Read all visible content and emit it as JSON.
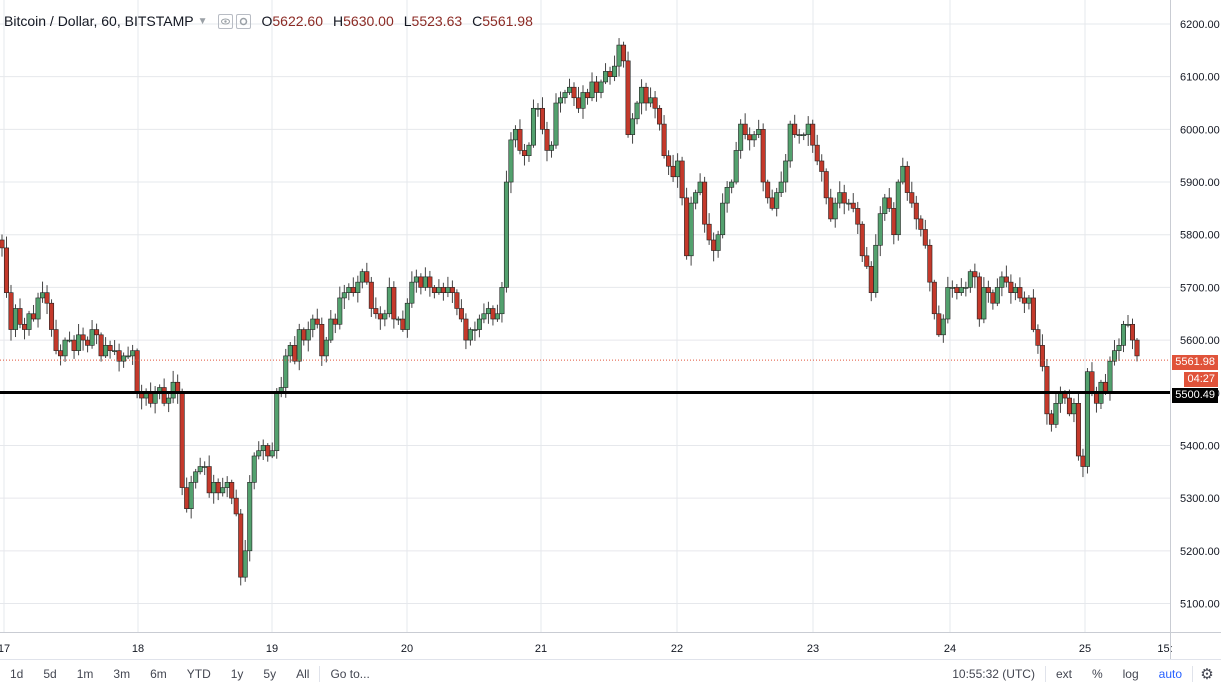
{
  "header": {
    "title": "Bitcoin / Dollar, 60, BITSTAMP",
    "ohlc": [
      {
        "label": "O",
        "value": "5622.60"
      },
      {
        "label": "H",
        "value": "5630.00"
      },
      {
        "label": "L",
        "value": "5523.63"
      },
      {
        "label": "C",
        "value": "5561.98"
      }
    ]
  },
  "price_axis": {
    "ticks": [
      "6200.00",
      "6100.00",
      "6000.00",
      "5900.00",
      "5800.00",
      "5700.00",
      "5600.00",
      "5500.00",
      "5400.00",
      "5300.00",
      "5200.00",
      "5100.00"
    ],
    "last_price_label": "5561.98",
    "countdown_label": "04:27",
    "line_label": "5500.49"
  },
  "time_axis": {
    "ticks": [
      "17",
      "18",
      "19",
      "20",
      "21",
      "22",
      "23",
      "24",
      "25",
      "15:"
    ]
  },
  "colors": {
    "up": "#53a16e",
    "down": "#c4392b",
    "border": "#222222",
    "line": "#000000",
    "last": "#e0533a"
  },
  "toolbar": {
    "ranges": [
      "1d",
      "5d",
      "1m",
      "3m",
      "6m",
      "YTD",
      "1y",
      "5y",
      "All"
    ],
    "goto": "Go to...",
    "clock": "10:55:32 (UTC)",
    "ext": "ext",
    "pct": "%",
    "log": "log",
    "auto": "auto"
  },
  "chart_data": {
    "type": "candlestick",
    "title": "Bitcoin / Dollar, 60, BITSTAMP",
    "ylim": [
      5060,
      6220
    ],
    "horizontal_line": 5500.49,
    "last_price": 5561.98,
    "grid": true,
    "x_labels": [
      "17",
      "18",
      "19",
      "20",
      "21",
      "22",
      "23",
      "24",
      "25",
      "15:"
    ],
    "close": [
      5775,
      5690,
      5620,
      5660,
      5630,
      5620,
      5650,
      5640,
      5680,
      5690,
      5670,
      5620,
      5580,
      5570,
      5600,
      5600,
      5580,
      5610,
      5600,
      5590,
      5620,
      5610,
      5570,
      5590,
      5580,
      5580,
      5560,
      5570,
      5570,
      5580,
      5500,
      5490,
      5500,
      5480,
      5500,
      5510,
      5480,
      5490,
      5520,
      5500,
      5320,
      5280,
      5330,
      5350,
      5360,
      5360,
      5310,
      5330,
      5310,
      5320,
      5330,
      5300,
      5270,
      5150,
      5200,
      5330,
      5380,
      5390,
      5400,
      5380,
      5390,
      5500,
      5510,
      5570,
      5590,
      5560,
      5620,
      5600,
      5620,
      5640,
      5630,
      5570,
      5600,
      5640,
      5630,
      5680,
      5690,
      5700,
      5690,
      5710,
      5730,
      5710,
      5660,
      5650,
      5640,
      5650,
      5700,
      5640,
      5640,
      5620,
      5670,
      5710,
      5720,
      5700,
      5720,
      5700,
      5690,
      5700,
      5690,
      5700,
      5690,
      5660,
      5640,
      5600,
      5620,
      5620,
      5640,
      5650,
      5660,
      5640,
      5650,
      5700,
      5900,
      5980,
      6000,
      5960,
      5950,
      5970,
      6040,
      6040,
      6000,
      5960,
      5970,
      6050,
      6060,
      6070,
      6080,
      6060,
      6040,
      6070,
      6060,
      6090,
      6070,
      6090,
      6110,
      6100,
      6120,
      6160,
      6130,
      5990,
      6020,
      6050,
      6080,
      6050,
      6060,
      6040,
      6010,
      5950,
      5930,
      5910,
      5940,
      5870,
      5760,
      5860,
      5880,
      5900,
      5820,
      5790,
      5770,
      5800,
      5860,
      5890,
      5900,
      5960,
      6010,
      5990,
      5980,
      5990,
      6000,
      5900,
      5870,
      5850,
      5880,
      5900,
      5940,
      6010,
      5990,
      5990,
      5990,
      6010,
      5970,
      5940,
      5920,
      5870,
      5830,
      5860,
      5880,
      5860,
      5860,
      5850,
      5820,
      5760,
      5740,
      5690,
      5780,
      5840,
      5870,
      5850,
      5800,
      5900,
      5930,
      5880,
      5860,
      5830,
      5810,
      5780,
      5710,
      5650,
      5610,
      5640,
      5700,
      5700,
      5690,
      5700,
      5700,
      5730,
      5720,
      5640,
      5700,
      5690,
      5670,
      5700,
      5720,
      5710,
      5690,
      5700,
      5680,
      5670,
      5680,
      5620,
      5590,
      5550,
      5460,
      5440,
      5480,
      5500,
      5490,
      5460,
      5480,
      5380,
      5360,
      5540,
      5500,
      5480,
      5520,
      5500,
      5560,
      5580,
      5590,
      5630,
      5630,
      5600,
      5570
    ],
    "open": [
      5790,
      5775,
      5690,
      5620,
      5660,
      5630,
      5620,
      5650,
      5640,
      5680,
      5690,
      5670,
      5620,
      5580,
      5570,
      5600,
      5600,
      5580,
      5610,
      5600,
      5590,
      5620,
      5610,
      5570,
      5590,
      5580,
      5580,
      5560,
      5570,
      5570,
      5580,
      5500,
      5490,
      5500,
      5480,
      5500,
      5510,
      5480,
      5490,
      5520,
      5500,
      5320,
      5280,
      5330,
      5350,
      5360,
      5360,
      5310,
      5330,
      5310,
      5320,
      5330,
      5300,
      5270,
      5150,
      5200,
      5330,
      5380,
      5390,
      5400,
      5380,
      5390,
      5500,
      5510,
      5570,
      5590,
      5560,
      5620,
      5600,
      5620,
      5640,
      5630,
      5570,
      5600,
      5640,
      5630,
      5680,
      5690,
      5700,
      5690,
      5710,
      5730,
      5710,
      5660,
      5650,
      5640,
      5650,
      5700,
      5640,
      5640,
      5620,
      5670,
      5710,
      5720,
      5700,
      5720,
      5700,
      5690,
      5700,
      5690,
      5700,
      5690,
      5660,
      5640,
      5600,
      5620,
      5620,
      5640,
      5650,
      5660,
      5640,
      5650,
      5700,
      5900,
      5980,
      6000,
      5960,
      5950,
      5970,
      6040,
      6040,
      6000,
      5960,
      5970,
      6050,
      6060,
      6070,
      6080,
      6060,
      6040,
      6070,
      6060,
      6090,
      6070,
      6090,
      6110,
      6100,
      6120,
      6160,
      6130,
      5990,
      6020,
      6050,
      6080,
      6050,
      6060,
      6040,
      6010,
      5950,
      5930,
      5910,
      5940,
      5870,
      5760,
      5860,
      5880,
      5900,
      5820,
      5790,
      5770,
      5800,
      5860,
      5890,
      5900,
      5960,
      6010,
      5990,
      5980,
      5990,
      6000,
      5900,
      5870,
      5850,
      5880,
      5900,
      5940,
      6010,
      5990,
      5990,
      5990,
      6010,
      5970,
      5940,
      5920,
      5870,
      5830,
      5860,
      5880,
      5860,
      5860,
      5850,
      5820,
      5760,
      5740,
      5690,
      5780,
      5840,
      5870,
      5850,
      5800,
      5900,
      5930,
      5880,
      5860,
      5830,
      5810,
      5780,
      5710,
      5650,
      5610,
      5640,
      5700,
      5700,
      5690,
      5700,
      5700,
      5730,
      5720,
      5640,
      5700,
      5690,
      5670,
      5700,
      5720,
      5710,
      5690,
      5700,
      5680,
      5670,
      5680,
      5620,
      5590,
      5550,
      5460,
      5440,
      5480,
      5500,
      5490,
      5460,
      5480,
      5380,
      5360,
      5540,
      5500,
      5480,
      5520,
      5500,
      5560,
      5580,
      5590,
      5630,
      5630,
      5600
    ]
  }
}
